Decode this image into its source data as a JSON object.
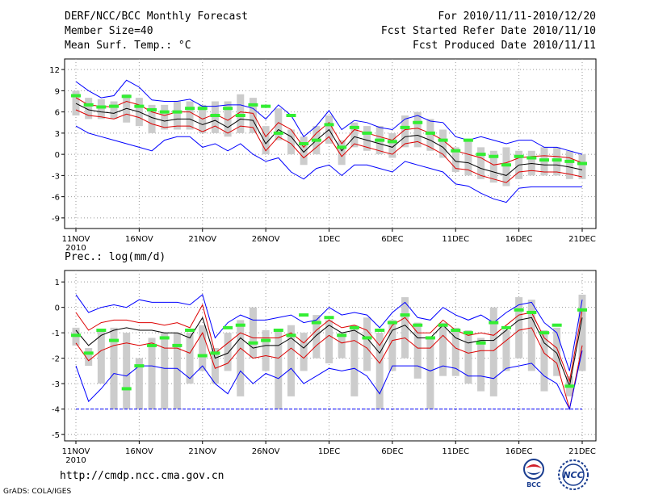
{
  "header": {
    "title": "DERF/NCC/BCC Monthly Forecast",
    "member_size": "Member Size=40",
    "variable": "Mean Surf. Temp.: °C",
    "period": "For 2010/11/11-2010/12/20",
    "started": "Fcst Started Refer Date 2010/11/10",
    "produced": "Fcst Produced Date 2010/11/11"
  },
  "footer": {
    "url": "http://cmdp.ncc.cma.gov.cn",
    "grads": "GrADS: COLA/IGES",
    "logo_bcc": "BCC",
    "logo_ncc": "NCC"
  },
  "colors": {
    "max": "#0000ff",
    "min": "#0000ff",
    "mean": "#000000",
    "spread": "#dd0000",
    "box": "#cccccc",
    "marker": "#33ee33"
  },
  "chart_data": [
    {
      "type": "box-line",
      "title": "Mean Surf. Temp.: °C",
      "ylabel": "Mean Surf. Temp.: °C",
      "ylim": [
        -10.5,
        13.5
      ],
      "yticks": [
        -9,
        -6,
        -3,
        0,
        3,
        6,
        9,
        12
      ],
      "xticks": [
        {
          "label": "11NOV",
          "day": 0
        },
        {
          "label": "16NOV",
          "day": 5
        },
        {
          "label": "21NOV",
          "day": 10
        },
        {
          "label": "26NOV",
          "day": 15
        },
        {
          "label": "1DEC",
          "day": 20
        },
        {
          "label": "6DEC",
          "day": 25
        },
        {
          "label": "11DEC",
          "day": 30
        },
        {
          "label": "16DEC",
          "day": 35
        },
        {
          "label": "21DEC",
          "day": 40
        }
      ],
      "year_label": "2010",
      "series": [
        {
          "name": "max",
          "values": [
            10.3,
            9.0,
            8.0,
            8.3,
            10.5,
            9.5,
            7.7,
            7.5,
            7.5,
            7.8,
            6.8,
            6.8,
            7.0,
            7.0,
            6.5,
            5.0,
            7.0,
            5.5,
            2.5,
            4.0,
            6.2,
            3.5,
            4.8,
            4.5,
            3.8,
            3.5,
            5.0,
            5.5,
            4.7,
            4.5,
            2.5,
            2.0,
            2.5,
            2.0,
            1.5,
            2.0,
            2.0,
            1.0,
            1.0,
            0.5,
            0.0
          ]
        },
        {
          "name": "upper",
          "values": [
            8.0,
            7.0,
            6.8,
            6.7,
            7.5,
            7.0,
            6.0,
            5.5,
            6.0,
            6.0,
            5.0,
            5.7,
            4.8,
            6.0,
            5.8,
            2.5,
            4.5,
            3.5,
            1.0,
            3.0,
            4.5,
            1.5,
            3.5,
            3.0,
            2.5,
            2.0,
            3.5,
            3.7,
            3.0,
            2.0,
            0.5,
            0.0,
            -0.5,
            -1.5,
            -1.2,
            -0.5,
            -0.3,
            -0.2,
            -0.3,
            -0.5,
            -1.2
          ]
        },
        {
          "name": "mean",
          "values": [
            7.2,
            6.3,
            6.0,
            5.8,
            6.5,
            6.0,
            5.2,
            4.7,
            5.0,
            5.0,
            4.2,
            4.8,
            3.8,
            5.0,
            4.8,
            1.5,
            3.5,
            2.5,
            0.3,
            2.0,
            3.5,
            0.5,
            2.5,
            2.0,
            1.5,
            1.0,
            2.5,
            2.7,
            2.0,
            1.0,
            -1.0,
            -1.2,
            -2.0,
            -2.5,
            -3.0,
            -1.5,
            -1.3,
            -1.5,
            -1.5,
            -1.8,
            -2.2
          ]
        },
        {
          "name": "lower",
          "values": [
            6.3,
            5.5,
            5.3,
            5.0,
            5.7,
            5.2,
            4.3,
            3.8,
            4.0,
            4.0,
            3.2,
            4.0,
            3.0,
            4.0,
            3.8,
            0.5,
            2.5,
            1.5,
            -0.5,
            1.0,
            2.5,
            -0.3,
            1.5,
            1.0,
            0.5,
            0.0,
            1.5,
            1.8,
            1.0,
            0.0,
            -2.0,
            -2.2,
            -3.0,
            -3.5,
            -4.0,
            -2.5,
            -2.3,
            -2.5,
            -2.5,
            -2.8,
            -3.2
          ]
        },
        {
          "name": "min",
          "values": [
            4.0,
            3.0,
            2.5,
            2.0,
            1.5,
            1.0,
            0.5,
            2.0,
            2.5,
            2.5,
            1.0,
            1.5,
            0.5,
            1.5,
            0.0,
            -1.0,
            -0.5,
            -2.5,
            -3.5,
            -2.0,
            -1.5,
            -3.0,
            -1.5,
            -1.5,
            -2.0,
            -2.5,
            -1.0,
            -1.5,
            -2.0,
            -2.5,
            -4.2,
            -4.5,
            -5.5,
            -6.3,
            -6.8,
            -4.8,
            -4.6,
            -4.6,
            -4.6,
            -4.6,
            -4.6
          ]
        }
      ],
      "boxes": [
        [
          5.5,
          9.0
        ],
        [
          5.0,
          8.0
        ],
        [
          5.0,
          7.8
        ],
        [
          5.0,
          7.5
        ],
        [
          4.5,
          8.5
        ],
        [
          4.0,
          8.0
        ],
        [
          3.0,
          7.0
        ],
        [
          3.5,
          7.0
        ],
        [
          3.5,
          7.5
        ],
        [
          3.5,
          7.5
        ],
        [
          3.0,
          7.0
        ],
        [
          3.0,
          7.5
        ],
        [
          2.5,
          7.5
        ],
        [
          3.0,
          8.5
        ],
        [
          3.0,
          8.0
        ],
        [
          0.0,
          4.0
        ],
        [
          2.0,
          6.5
        ],
        [
          0.0,
          3.5
        ],
        [
          -1.5,
          2.5
        ],
        [
          0.0,
          4.0
        ],
        [
          1.5,
          5.5
        ],
        [
          -1.5,
          2.0
        ],
        [
          1.0,
          4.5
        ],
        [
          0.5,
          4.0
        ],
        [
          0.0,
          4.0
        ],
        [
          -0.5,
          3.0
        ],
        [
          1.0,
          5.5
        ],
        [
          1.0,
          6.0
        ],
        [
          0.5,
          5.0
        ],
        [
          -0.5,
          3.5
        ],
        [
          -2.5,
          1.0
        ],
        [
          -3.0,
          2.0
        ],
        [
          -3.5,
          1.0
        ],
        [
          -4.0,
          0.5
        ],
        [
          -4.5,
          1.0
        ],
        [
          -3.5,
          0.5
        ],
        [
          -3.0,
          0.5
        ],
        [
          -3.0,
          1.0
        ],
        [
          -3.0,
          1.0
        ],
        [
          -3.5,
          0.5
        ],
        [
          -3.5,
          0.0
        ]
      ],
      "markers": [
        8.3,
        7.0,
        6.7,
        6.8,
        8.2,
        6.8,
        6.3,
        6.0,
        6.0,
        6.5,
        6.5,
        5.5,
        6.5,
        5.5,
        7.0,
        6.8,
        3.0,
        5.5,
        1.5,
        2.0,
        4.2,
        1.0,
        3.8,
        3.0,
        2.0,
        1.8,
        3.8,
        4.5,
        3.0,
        2.0,
        0.5,
        2.0,
        0.0,
        -0.3,
        -1.5,
        -0.3,
        -0.5,
        -0.8,
        -0.8,
        -1.0,
        -1.3
      ]
    },
    {
      "type": "box-line",
      "title": "Prec.: log(mm/d)",
      "ylabel": "Prec.: log(mm/d)",
      "ylim": [
        -5.25,
        1.45
      ],
      "yticks": [
        -5,
        -4,
        -3,
        -2,
        -1,
        0,
        1
      ],
      "xticks": [
        {
          "label": "11NOV",
          "day": 0
        },
        {
          "label": "16NOV",
          "day": 5
        },
        {
          "label": "21NOV",
          "day": 10
        },
        {
          "label": "26NOV",
          "day": 15
        },
        {
          "label": "1DEC",
          "day": 20
        },
        {
          "label": "6DEC",
          "day": 25
        },
        {
          "label": "11DEC",
          "day": 30
        },
        {
          "label": "16DEC",
          "day": 35
        },
        {
          "label": "21DEC",
          "day": 40
        }
      ],
      "year_label": "2010",
      "series": [
        {
          "name": "max",
          "values": [
            0.5,
            -0.2,
            0.0,
            0.1,
            0.0,
            0.3,
            0.2,
            0.2,
            0.2,
            0.1,
            0.5,
            -1.2,
            -0.6,
            -0.3,
            -0.5,
            -0.5,
            -0.4,
            -0.3,
            -0.6,
            -0.5,
            0.0,
            -0.3,
            -0.2,
            -0.3,
            -0.8,
            -0.2,
            0.2,
            -0.4,
            -0.5,
            0.0,
            -0.3,
            -0.5,
            -0.3,
            -0.6,
            -0.2,
            0.1,
            0.2,
            -0.6,
            -1.0,
            -2.5,
            0.3
          ]
        },
        {
          "name": "upper",
          "values": [
            -0.2,
            -0.9,
            -0.6,
            -0.5,
            -0.5,
            -0.6,
            -0.6,
            -0.7,
            -0.6,
            -0.8,
            0.1,
            -1.8,
            -1.4,
            -1.0,
            -1.2,
            -1.2,
            -1.2,
            -1.0,
            -1.4,
            -0.9,
            -0.5,
            -0.8,
            -0.7,
            -0.9,
            -1.5,
            -0.7,
            -0.4,
            -1.0,
            -1.0,
            -0.5,
            -0.9,
            -1.1,
            -1.0,
            -1.1,
            -0.7,
            -0.3,
            -0.2,
            -1.2,
            -1.6,
            -2.9,
            -0.1
          ]
        },
        {
          "name": "mean",
          "values": [
            -0.9,
            -1.5,
            -1.1,
            -0.9,
            -0.8,
            -0.9,
            -0.9,
            -1.0,
            -1.0,
            -1.2,
            -0.4,
            -2.0,
            -1.8,
            -1.2,
            -1.6,
            -1.5,
            -1.5,
            -1.2,
            -1.6,
            -1.1,
            -0.7,
            -1.0,
            -0.9,
            -1.2,
            -1.8,
            -0.9,
            -0.7,
            -1.2,
            -1.2,
            -0.7,
            -1.2,
            -1.4,
            -1.3,
            -1.3,
            -0.9,
            -0.5,
            -0.4,
            -1.4,
            -1.8,
            -3.1,
            -0.4
          ]
        },
        {
          "name": "lower",
          "values": [
            -1.4,
            -2.1,
            -1.7,
            -1.5,
            -1.4,
            -1.5,
            -1.4,
            -1.6,
            -1.6,
            -1.8,
            -1.0,
            -2.4,
            -2.2,
            -1.6,
            -2.0,
            -1.9,
            -2.0,
            -1.6,
            -2.0,
            -1.5,
            -1.1,
            -1.4,
            -1.3,
            -1.6,
            -2.2,
            -1.3,
            -1.2,
            -1.6,
            -1.6,
            -1.1,
            -1.6,
            -1.8,
            -1.7,
            -1.7,
            -1.3,
            -0.9,
            -0.8,
            -1.8,
            -2.2,
            -4.0,
            -1.5
          ]
        },
        {
          "name": "min",
          "values": [
            -2.3,
            -3.7,
            -3.2,
            -2.6,
            -2.7,
            -2.3,
            -2.3,
            -2.4,
            -2.4,
            -2.8,
            -2.3,
            -3.0,
            -3.4,
            -2.5,
            -3.0,
            -2.6,
            -2.8,
            -2.4,
            -3.0,
            -2.7,
            -2.4,
            -2.5,
            -2.4,
            -2.7,
            -3.4,
            -2.3,
            -2.3,
            -2.3,
            -2.5,
            -2.3,
            -2.4,
            -2.7,
            -2.7,
            -2.8,
            -2.4,
            -2.3,
            -2.2,
            -2.7,
            -3.0,
            -4.0,
            -1.7
          ]
        },
        {
          "name": "floor",
          "values": [
            -4.0,
            -4.0,
            -4.0,
            -4.0,
            -4.0,
            -4.0,
            -4.0,
            -4.0,
            -4.0,
            -4.0,
            -4.0,
            -4.0,
            -4.0,
            -4.0,
            -4.0,
            -4.0,
            -4.0,
            -4.0,
            -4.0,
            -4.0,
            -4.0,
            -4.0,
            -4.0,
            -4.0,
            -4.0,
            -4.0,
            -4.0,
            -4.0,
            -4.0,
            -4.0,
            -4.0,
            -4.0,
            -4.0,
            -4.0,
            -4.0,
            -4.0,
            -4.0,
            -4.0,
            -4.0,
            -4.0,
            -4.0
          ]
        }
      ],
      "boxes": [
        [
          -1.5,
          -0.8
        ],
        [
          -2.3,
          -1.6
        ],
        [
          -3.0,
          -0.9
        ],
        [
          -4.0,
          -0.8
        ],
        [
          -4.0,
          -1.0
        ],
        [
          -4.0,
          -2.0
        ],
        [
          -4.0,
          -1.2
        ],
        [
          -4.0,
          -1.0
        ],
        [
          -4.0,
          -1.0
        ],
        [
          -3.0,
          -1.0
        ],
        [
          -2.5,
          -0.7
        ],
        [
          -3.0,
          -1.6
        ],
        [
          -2.5,
          -1.0
        ],
        [
          -3.5,
          -0.5
        ],
        [
          -2.0,
          0.0
        ],
        [
          -2.5,
          -0.9
        ],
        [
          -4.0,
          -0.9
        ],
        [
          -3.5,
          -0.7
        ],
        [
          -2.5,
          -1.0
        ],
        [
          -2.0,
          -0.3
        ],
        [
          -2.2,
          -0.5
        ],
        [
          -2.0,
          -1.0
        ],
        [
          -3.5,
          -0.7
        ],
        [
          -2.5,
          -0.4
        ],
        [
          -4.0,
          -1.0
        ],
        [
          -2.5,
          -0.5
        ],
        [
          -2.0,
          0.4
        ],
        [
          -2.8,
          -0.6
        ],
        [
          -4.0,
          -1.2
        ],
        [
          -2.7,
          -0.6
        ],
        [
          -2.7,
          -0.8
        ],
        [
          -3.0,
          -0.9
        ],
        [
          -3.3,
          -1.2
        ],
        [
          -3.5,
          0.0
        ],
        [
          -2.5,
          -0.9
        ],
        [
          -2.0,
          0.4
        ],
        [
          -2.5,
          0.3
        ],
        [
          -3.3,
          -0.9
        ],
        [
          -2.7,
          -0.8
        ],
        [
          -3.5,
          -2.7
        ],
        [
          -2.5,
          0.5
        ]
      ],
      "markers": [
        -1.1,
        -1.8,
        -0.9,
        -1.3,
        -3.2,
        -2.3,
        -1.5,
        -1.2,
        -1.5,
        -0.9,
        -1.9,
        -1.8,
        -0.8,
        -0.7,
        -1.4,
        -1.3,
        -0.9,
        -1.1,
        -0.3,
        -0.6,
        -0.4,
        -1.1,
        -0.8,
        -1.2,
        -0.9,
        -0.6,
        -0.3,
        -0.7,
        -1.2,
        -0.7,
        -0.9,
        -1.0,
        -1.4,
        -0.6,
        -0.8,
        -0.1,
        -0.2,
        -1.0,
        -0.7,
        -3.1,
        -0.1
      ]
    }
  ]
}
